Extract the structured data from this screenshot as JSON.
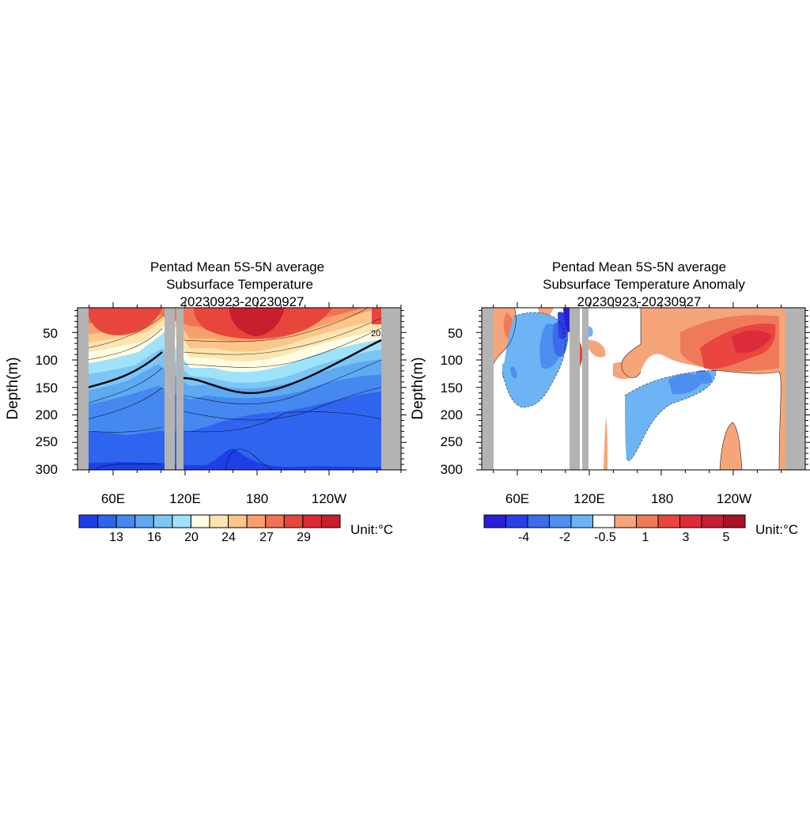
{
  "figure": {
    "panels": [
      {
        "title_lines": [
          "Pentad Mean 5S-5N average",
          "Subsurface Temperature",
          "20230923-20230927"
        ],
        "ylabel": "Depth(m)",
        "y_ticks": [
          "50",
          "100",
          "150",
          "200",
          "250",
          "300"
        ],
        "x_ticks": [
          "60E",
          "120E",
          "180",
          "120W"
        ],
        "contour_label": "20",
        "colorbar": {
          "labels": [
            "13",
            "16",
            "20",
            "24",
            "27",
            "29"
          ],
          "colors": [
            "#1f3fe6",
            "#2f64ee",
            "#4488f0",
            "#5fa8f2",
            "#7cc6f6",
            "#9fe2fb",
            "#fffde2",
            "#fde4b0",
            "#fcc58a",
            "#f7a06e",
            "#f07453",
            "#e8453d",
            "#db2a36",
            "#c81e2e"
          ],
          "unit": "Unit:°C"
        }
      },
      {
        "title_lines": [
          "Pentad Mean 5S-5N average",
          "Subsurface Temperature Anomaly",
          "20230923-20230927"
        ],
        "ylabel": "Depth(m)",
        "y_ticks": [
          "50",
          "100",
          "150",
          "200",
          "250",
          "300"
        ],
        "x_ticks": [
          "60E",
          "120E",
          "180",
          "120W"
        ],
        "colorbar": {
          "labels": [
            "-4",
            "-2",
            "-0.5",
            "1",
            "3",
            "5"
          ],
          "colors": [
            "#2a1fd6",
            "#2b3fe6",
            "#3b6ceb",
            "#4d8ff0",
            "#6db4f5",
            "#ffffff",
            "#f6a57a",
            "#ef7a5a",
            "#e8463f",
            "#dc2b3a",
            "#c51f33",
            "#a8102a"
          ],
          "unit": "Unit:°C"
        }
      }
    ]
  },
  "chart_data": [
    {
      "type": "heatmap",
      "title": "Pentad Mean 5S-5N average Subsurface Temperature 20230923-20230927",
      "xlabel": "",
      "ylabel": "Depth(m)",
      "x_ticks": [
        "60E",
        "120E",
        "180",
        "120W"
      ],
      "y_ticks": [
        50,
        100,
        150,
        200,
        250,
        300
      ],
      "ylim": [
        300,
        5
      ],
      "colorbar_levels": [
        13,
        16,
        20,
        24,
        27,
        29
      ],
      "contour_label": "20",
      "units": "°C"
    },
    {
      "type": "heatmap",
      "title": "Pentad Mean 5S-5N average Subsurface Temperature Anomaly 20230923-20230927",
      "xlabel": "",
      "ylabel": "Depth(m)",
      "x_ticks": [
        "60E",
        "120E",
        "180",
        "120W"
      ],
      "y_ticks": [
        50,
        100,
        150,
        200,
        250,
        300
      ],
      "ylim": [
        300,
        5
      ],
      "colorbar_levels": [
        -4,
        -2,
        -0.5,
        1,
        3,
        5
      ],
      "units": "°C"
    }
  ]
}
